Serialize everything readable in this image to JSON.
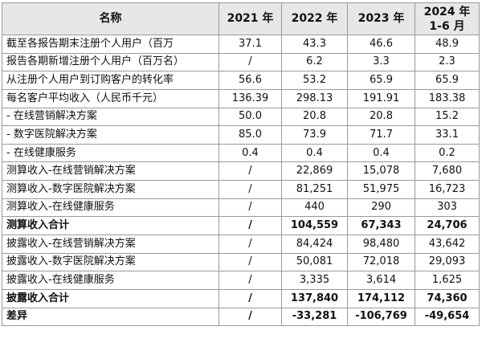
{
  "table": {
    "headers": [
      "名称",
      "2021 年",
      "2022 年",
      "2023 年",
      "2024 年 1-6 月"
    ],
    "header_year4_line1": "2024 年",
    "header_year4_line2": "1-6 月",
    "rows": [
      {
        "label": "截至各报告期末注册个人用户（百万",
        "values": [
          "37.1",
          "43.3",
          "46.6",
          "48.9"
        ],
        "bold": false
      },
      {
        "label": "报告各期新增注册个人用户（百万名）",
        "values": [
          "/",
          "6.2",
          "3.3",
          "2.3"
        ],
        "bold": false
      },
      {
        "label": "从注册个人用户到订购客户的转化率",
        "values": [
          "56.6",
          "53.2",
          "65.9",
          "65.9"
        ],
        "bold": false
      },
      {
        "label": "每名客户平均收入（人民币千元）",
        "values": [
          "136.39",
          "298.13",
          "191.91",
          "183.38"
        ],
        "bold": false
      },
      {
        "label": " - 在线营销解决方案",
        "values": [
          "50.0",
          "20.8",
          "20.8",
          "15.2"
        ],
        "bold": false
      },
      {
        "label": " - 数字医院解决方案",
        "values": [
          "85.0",
          "73.9",
          "71.7",
          "33.1"
        ],
        "bold": false
      },
      {
        "label": " - 在线健康服务",
        "values": [
          "0.4",
          "0.4",
          "0.4",
          "0.2"
        ],
        "bold": false
      },
      {
        "label": "测算收入-在线营销解决方案",
        "values": [
          "/",
          "22,869",
          "15,078",
          "7,680"
        ],
        "bold": false
      },
      {
        "label": "测算收入-数字医院解决方案",
        "values": [
          "/",
          "81,251",
          "51,975",
          "16,723"
        ],
        "bold": false
      },
      {
        "label": "测算收入-在线健康服务",
        "values": [
          "/",
          "440",
          "290",
          "303"
        ],
        "bold": false
      },
      {
        "label": "测算收入合计",
        "values": [
          "/",
          "104,559",
          "67,343",
          "24,706"
        ],
        "bold": true
      },
      {
        "label": "披露收入-在线营销解决方案",
        "values": [
          "/",
          "84,424",
          "98,480",
          "43,642"
        ],
        "bold": false
      },
      {
        "label": "披露收入-数字医院解决方案",
        "values": [
          "/",
          "50,081",
          "72,018",
          "29,093"
        ],
        "bold": false
      },
      {
        "label": "披露收入-在线健康服务",
        "values": [
          "/",
          "3,335",
          "3,614",
          "1,625"
        ],
        "bold": false
      },
      {
        "label": "披露收入合计",
        "values": [
          "/",
          "137,840",
          "174,112",
          "74,360"
        ],
        "bold": true
      },
      {
        "label": "差异",
        "values": [
          "/",
          "-33,281",
          "-106,769",
          "-49,654"
        ],
        "bold": true
      }
    ]
  },
  "colors": {
    "header_bg": "#e7e7e7",
    "border": "#9a9a9a",
    "text": "#111111"
  }
}
